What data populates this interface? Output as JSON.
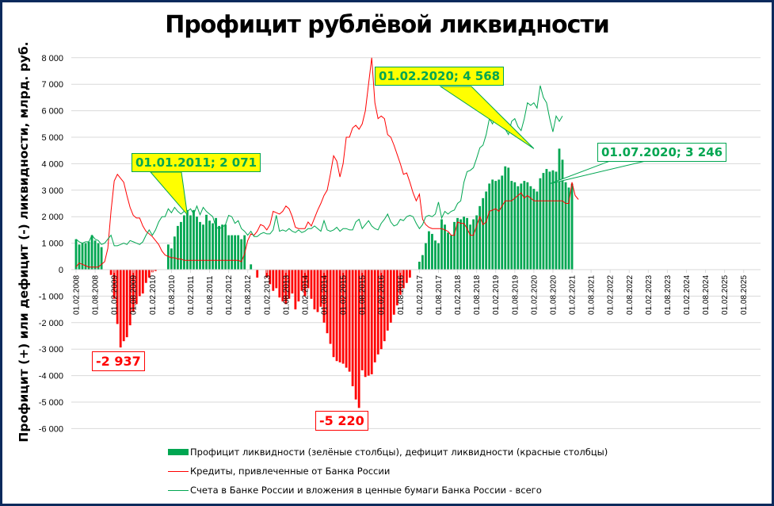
{
  "chart_data": {
    "type": "bar",
    "title": "Профицит рублёвой ликвидности",
    "xlabel": "",
    "ylabel": "Профицит (+) или дефицит (-) ликвидности, млрд. руб.",
    "ylim": [
      -6000,
      8000
    ],
    "yticks": [
      8000,
      7000,
      6000,
      5000,
      4000,
      3000,
      2000,
      1000,
      0,
      -1000,
      -2000,
      -3000,
      -4000,
      -5000,
      -6000
    ],
    "ytick_labels": [
      "8 000",
      "7 000",
      "6 000",
      "5 000",
      "4 000",
      "3 000",
      "2 000",
      "1 000",
      "0",
      "-1 000",
      "-2 000",
      "-3 000",
      "-4 000",
      "-5 000",
      "-6 000"
    ],
    "grid": true,
    "xtick_labels": [
      "01.02.2008",
      "01.08.2008",
      "01.02.2009",
      "01.08.2009",
      "01.02.2010",
      "01.08.2010",
      "01.02.2011",
      "01.08.2011",
      "01.02.2012",
      "01.08.2012",
      "01.02.2013",
      "01.08.2013",
      "01.02.2014",
      "01.08.2014",
      "01.02.2015",
      "01.08.2015",
      "01.02.2016",
      "01.08.2016",
      "01.02.2017",
      "01.08.2017",
      "01.02.2018",
      "01.08.2018",
      "01.02.2019",
      "01.08.2019",
      "01.02.2020",
      "01.08.2020",
      "01.02.2021",
      "01.08.2021",
      "01.02.2022",
      "01.08.2022",
      "01.02.2023",
      "01.08.2023",
      "01.02.2024",
      "01.08.2024",
      "01.02.2025",
      "01.08.2025"
    ],
    "x_start": "01.02.2008",
    "x_step": "1 month",
    "legend_position": "bottom",
    "series": [
      {
        "name": "Профицит ликвидности (зелёные столбцы), дефицит ликвидности (красные столбцы)",
        "type": "bar",
        "color_positive": "#00a651",
        "color_negative": "#ff0000",
        "values": [
          1150,
          950,
          1000,
          1000,
          1050,
          1300,
          1100,
          1000,
          850,
          0,
          0,
          -200,
          -1100,
          -2050,
          -2937,
          -2700,
          -2550,
          -2100,
          -1600,
          -1300,
          -1000,
          -900,
          -500,
          -300,
          -100,
          -50,
          0,
          0,
          0,
          950,
          800,
          1250,
          1650,
          1800,
          2050,
          2250,
          2050,
          2250,
          2000,
          1800,
          1700,
          2071,
          1850,
          1750,
          1950,
          1650,
          1700,
          1700,
          1300,
          1300,
          1300,
          1300,
          1150,
          1300,
          0,
          200,
          0,
          -300,
          0,
          0,
          -300,
          -550,
          -800,
          -700,
          -1050,
          -1200,
          -1300,
          -1100,
          -900,
          -1500,
          -1200,
          -800,
          -1000,
          -700,
          -1100,
          -1500,
          -1600,
          -1400,
          -2000,
          -2400,
          -2800,
          -3300,
          -3450,
          -3500,
          -3550,
          -3700,
          -3850,
          -4400,
          -4900,
          -5220,
          -3800,
          -4050,
          -4000,
          -3950,
          -3500,
          -3200,
          -3000,
          -2700,
          -2300,
          -2000,
          -1700,
          -1350,
          -950,
          -700,
          -500,
          -300,
          0,
          0,
          300,
          550,
          1000,
          1450,
          1350,
          1100,
          1000,
          1900,
          1700,
          1400,
          1300,
          1800,
          1950,
          1900,
          2000,
          1950,
          1700,
          1900,
          2050,
          2400,
          2700,
          2950,
          3250,
          3400,
          3350,
          3400,
          3550,
          3900,
          3850,
          3350,
          3300,
          3150,
          3250,
          3350,
          3300,
          3150,
          3050,
          2950,
          3450,
          3650,
          3800,
          3700,
          3750,
          3700,
          4568,
          4150,
          3300,
          3100,
          3246
        ]
      },
      {
        "name": "Кредиты, привлеченные от Банка России",
        "type": "line",
        "color": "#ff0000",
        "values": [
          100,
          250,
          200,
          150,
          100,
          100,
          100,
          100,
          200,
          300,
          800,
          2200,
          3350,
          3600,
          3450,
          3300,
          2800,
          2350,
          2050,
          1950,
          1950,
          1650,
          1450,
          1350,
          1250,
          1100,
          950,
          700,
          550,
          500,
          450,
          450,
          400,
          400,
          350,
          350,
          350,
          350,
          350,
          350,
          350,
          350,
          350,
          350,
          350,
          350,
          350,
          350,
          350,
          350,
          350,
          350,
          300,
          600,
          1100,
          1350,
          1300,
          1450,
          1700,
          1650,
          1500,
          1700,
          2200,
          2150,
          2100,
          2200,
          2400,
          2300,
          2000,
          1600,
          1550,
          1550,
          1550,
          1800,
          1650,
          1950,
          2250,
          2500,
          2800,
          3000,
          3600,
          4300,
          4100,
          3500,
          4000,
          5000,
          5000,
          5350,
          5450,
          5300,
          5500,
          6000,
          7000,
          8000,
          6300,
          5700,
          5800,
          5700,
          5100,
          5000,
          4700,
          4350,
          4000,
          3600,
          3650,
          3300,
          2900,
          2600,
          2850,
          1900,
          1700,
          1600,
          1550,
          1550,
          1550,
          1550,
          1500,
          1450,
          1300,
          1300,
          1800,
          1750,
          1750,
          1550,
          1300,
          1300,
          1650,
          2000,
          1700,
          1800,
          2200,
          2250,
          2300,
          2200,
          2400,
          2600,
          2600,
          2600,
          2700,
          2800,
          2900,
          2700,
          2800,
          2700,
          2600,
          2600,
          2600,
          2600,
          2600,
          2600,
          2600,
          2600,
          2600,
          2600,
          2500,
          2500,
          3300,
          2800,
          2650
        ]
      },
      {
        "name": "Счета в Банке России и вложения в ценные бумаги Банка России - всего",
        "type": "line",
        "color": "#00a651",
        "values": [
          1150,
          1050,
          1000,
          1050,
          1050,
          1300,
          1150,
          1100,
          950,
          1000,
          1150,
          1300,
          900,
          900,
          950,
          1000,
          950,
          1100,
          1050,
          1000,
          950,
          1050,
          1300,
          1500,
          1300,
          1500,
          1800,
          2000,
          2000,
          2300,
          2150,
          2350,
          2200,
          2100,
          2200,
          2200,
          2300,
          2100,
          2400,
          2071,
          2350,
          2200,
          2100,
          2000,
          1600,
          1550,
          1600,
          1700,
          2050,
          2000,
          1750,
          1850,
          1550,
          1450,
          1300,
          1450,
          1250,
          1250,
          1350,
          1400,
          1350,
          1350,
          1500,
          2050,
          1450,
          1500,
          1450,
          1550,
          1450,
          1400,
          1500,
          1400,
          1450,
          1550,
          1550,
          1650,
          1550,
          1450,
          1850,
          1500,
          1450,
          1500,
          1600,
          1450,
          1550,
          1550,
          1500,
          1500,
          1800,
          1900,
          1550,
          1700,
          1850,
          1650,
          1550,
          1500,
          1750,
          1900,
          2100,
          1800,
          1650,
          1700,
          1900,
          1850,
          2000,
          2050,
          2000,
          1750,
          1550,
          1700,
          2000,
          2050,
          2000,
          2100,
          2550,
          1950,
          2200,
          2100,
          2200,
          2250,
          2500,
          2600,
          3300,
          3700,
          3750,
          3850,
          4200,
          4600,
          4700,
          5100,
          5700,
          5500,
          5800,
          5700,
          5600,
          5300,
          5100,
          5600,
          5700,
          5400,
          5250,
          5700,
          6300,
          6200,
          6300,
          6100,
          6950,
          6500,
          6300,
          5700,
          5200,
          5800,
          5600,
          5800
        ]
      }
    ],
    "annotations": [
      {
        "text": "01.01.2011; 2 071",
        "x": "01.01.2011",
        "y": 2071,
        "style": "yellow-callout"
      },
      {
        "text": "01.02.2020; 4 568",
        "x": "01.02.2020",
        "y": 4568,
        "style": "yellow-callout"
      },
      {
        "text": "01.07.2020; 3 246",
        "x": "01.07.2020",
        "y": 3246,
        "style": "white-callout"
      },
      {
        "text": "-2 937",
        "x": "01.02.2009",
        "y": -2937,
        "style": "red-box"
      },
      {
        "text": "-5 220",
        "x": "01.01.2015",
        "y": -5220,
        "style": "red-box"
      }
    ]
  },
  "page": {
    "title": "Профицит рублёвой ликвидности",
    "ylabel": "Профицит (+) или дефицит (-) ликвидности, млрд. руб."
  },
  "legend": {
    "items": [
      {
        "label": "Профицит ликвидности (зелёные столбцы), дефицит ликвидности (красные столбцы)"
      },
      {
        "label": "Кредиты, привлеченные от Банка России"
      },
      {
        "label": "Счета  в Банке России и вложения в ценные бумаги Банка России - всего"
      }
    ]
  },
  "callouts": {
    "c2011": "01.01.2011; 2 071",
    "c2020feb": "01.02.2020; 4 568",
    "c2020jul": "01.07.2020; 3 246",
    "min2009": "-2 937",
    "min2015": "-5 220"
  },
  "colors": {
    "green": "#00a651",
    "red": "#ff0000",
    "grid": "#d9d9d9",
    "callout_fill": "#ffff00",
    "callout_text": "#00a651",
    "frame": "#0b2a5c"
  }
}
